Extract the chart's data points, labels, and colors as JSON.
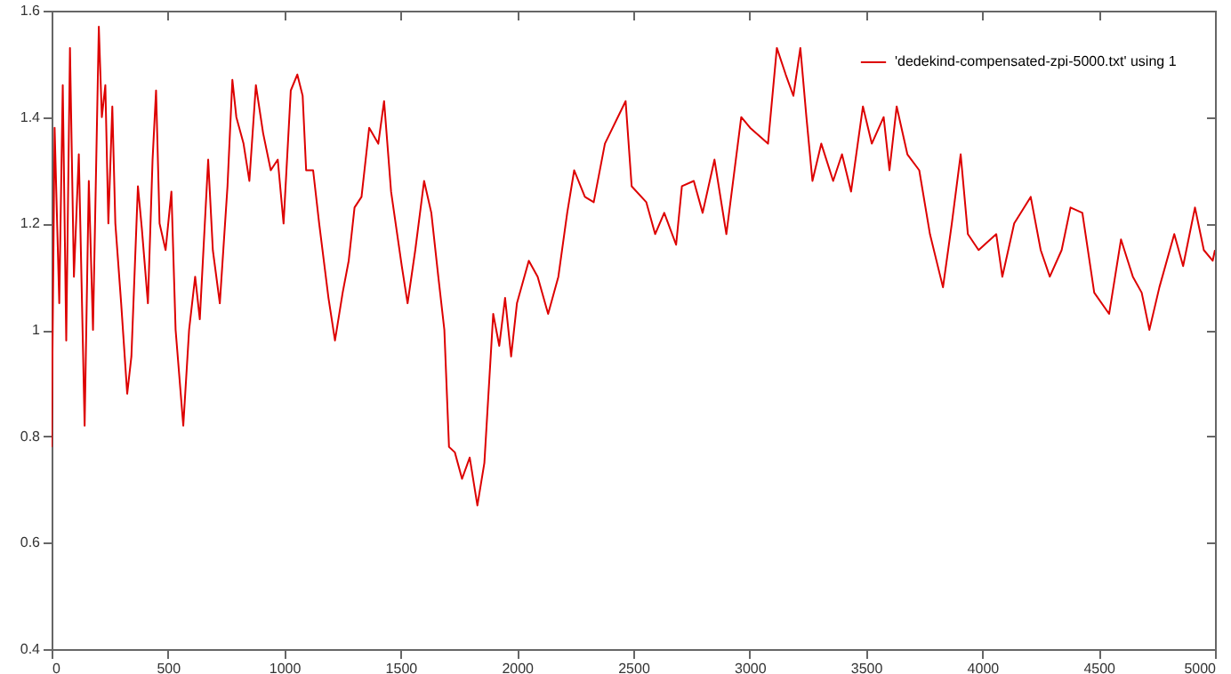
{
  "chart_data": {
    "type": "line",
    "xlim": [
      0,
      5000
    ],
    "ylim": [
      0.4,
      1.6
    ],
    "xticks": [
      0,
      500,
      1000,
      1500,
      2000,
      2500,
      3000,
      3500,
      4000,
      4500,
      5000
    ],
    "yticks": [
      0.4,
      0.6,
      0.8,
      1,
      1.2,
      1.4,
      1.6
    ],
    "legend": "top right",
    "marker": "none",
    "line_style": "solid",
    "series": [
      {
        "name": "'dedekind-compensated-zpi-5000.txt' using 1",
        "color": "#dd0000",
        "x": [
          0,
          13,
          33,
          48,
          63,
          79,
          96,
          117,
          142,
          160,
          178,
          203,
          216,
          231,
          244,
          261,
          274,
          299,
          325,
          343,
          371,
          388,
          414,
          434,
          449,
          464,
          490,
          515,
          533,
          566,
          591,
          617,
          637,
          673,
          693,
          723,
          756,
          777,
          794,
          825,
          850,
          878,
          909,
          942,
          972,
          997,
          1028,
          1056,
          1079,
          1094,
          1124,
          1150,
          1190,
          1218,
          1251,
          1277,
          1302,
          1332,
          1365,
          1404,
          1429,
          1459,
          1505,
          1530,
          1563,
          1601,
          1632,
          1662,
          1688,
          1708,
          1733,
          1764,
          1797,
          1830,
          1860,
          1898,
          1924,
          1949,
          1975,
          2000,
          2051,
          2089,
          2134,
          2178,
          2216,
          2246,
          2292,
          2330,
          2378,
          2467,
          2493,
          2556,
          2594,
          2633,
          2684,
          2709,
          2760,
          2798,
          2849,
          2900,
          2964,
          3002,
          3079,
          3117,
          3155,
          3188,
          3218,
          3244,
          3270,
          3308,
          3359,
          3397,
          3436,
          3487,
          3525,
          3576,
          3601,
          3632,
          3678,
          3729,
          3775,
          3831,
          3869,
          3907,
          3938,
          3984,
          4060,
          4086,
          4137,
          4208,
          4251,
          4290,
          4341,
          4379,
          4430,
          4481,
          4545,
          4596,
          4647,
          4685,
          4718,
          4761,
          4825,
          4863,
          4914,
          4952,
          4990,
          5000
        ],
        "values": [
          0.78,
          1.38,
          1.05,
          1.46,
          0.98,
          1.53,
          1.1,
          1.33,
          0.82,
          1.28,
          1.0,
          1.57,
          1.4,
          1.46,
          1.2,
          1.42,
          1.2,
          1.05,
          0.88,
          0.95,
          1.27,
          1.19,
          1.05,
          1.32,
          1.45,
          1.2,
          1.15,
          1.26,
          1.0,
          0.82,
          1.0,
          1.1,
          1.02,
          1.32,
          1.15,
          1.05,
          1.27,
          1.47,
          1.4,
          1.35,
          1.28,
          1.46,
          1.37,
          1.3,
          1.32,
          1.2,
          1.45,
          1.48,
          1.44,
          1.3,
          1.3,
          1.2,
          1.06,
          0.98,
          1.07,
          1.13,
          1.23,
          1.25,
          1.38,
          1.35,
          1.43,
          1.26,
          1.12,
          1.05,
          1.15,
          1.28,
          1.22,
          1.1,
          1.0,
          0.78,
          0.77,
          0.72,
          0.76,
          0.67,
          0.75,
          1.03,
          0.97,
          1.06,
          0.95,
          1.05,
          1.13,
          1.1,
          1.03,
          1.1,
          1.22,
          1.3,
          1.25,
          1.24,
          1.35,
          1.43,
          1.27,
          1.24,
          1.18,
          1.22,
          1.16,
          1.27,
          1.28,
          1.22,
          1.32,
          1.18,
          1.4,
          1.38,
          1.35,
          1.53,
          1.48,
          1.44,
          1.53,
          1.4,
          1.28,
          1.35,
          1.28,
          1.33,
          1.26,
          1.42,
          1.35,
          1.4,
          1.3,
          1.42,
          1.33,
          1.3,
          1.18,
          1.08,
          1.2,
          1.33,
          1.18,
          1.15,
          1.18,
          1.1,
          1.2,
          1.25,
          1.15,
          1.1,
          1.15,
          1.23,
          1.22,
          1.07,
          1.03,
          1.17,
          1.1,
          1.07,
          1.0,
          1.08,
          1.18,
          1.12,
          1.23,
          1.15,
          1.13,
          1.15
        ]
      }
    ]
  }
}
